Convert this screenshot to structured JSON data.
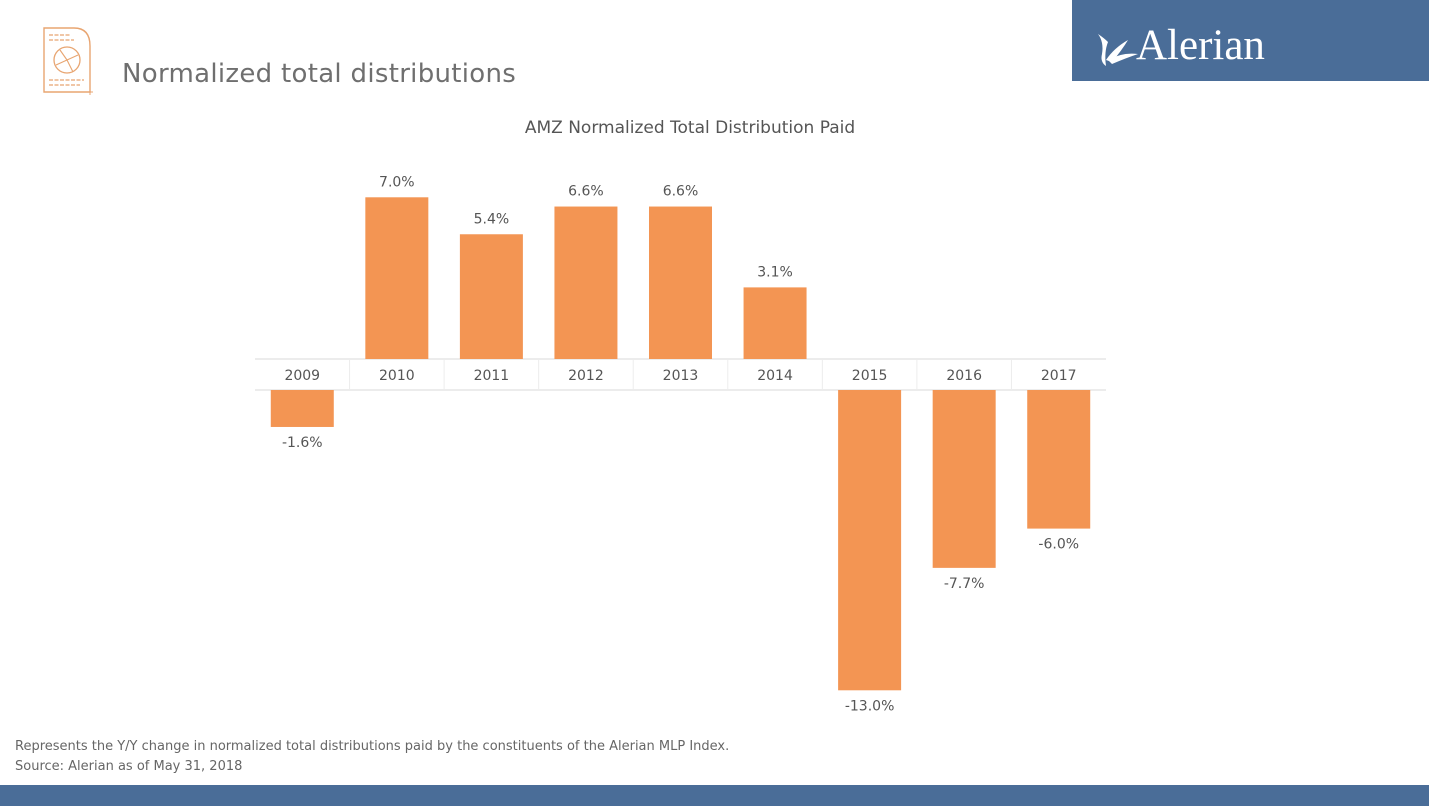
{
  "header": {
    "title": "Normalized total distributions",
    "icon": "document-pie-chart-icon",
    "logo": {
      "text": "Alerian",
      "mark": "leaf-logo-icon"
    }
  },
  "colors": {
    "bar": "#f39553",
    "brand_blue": "#4a6d98",
    "icon_orange": "#e8a571",
    "axis_line": "#d9d9d9",
    "text_gray": "#555555"
  },
  "chart_data": {
    "type": "bar",
    "title": "AMZ Normalized Total Distribution Paid",
    "xlabel": "",
    "ylabel": "",
    "categories": [
      "2009",
      "2010",
      "2011",
      "2012",
      "2013",
      "2014",
      "2015",
      "2016",
      "2017"
    ],
    "values": [
      -1.6,
      7.0,
      5.4,
      6.6,
      6.6,
      3.1,
      -13.0,
      -7.7,
      -6.0
    ],
    "data_labels": [
      "-1.6%",
      "7.0%",
      "5.4%",
      "6.6%",
      "6.6%",
      "3.1%",
      "-13.0%",
      "-7.7%",
      "-6.0%"
    ],
    "unit": "%",
    "ylim": [
      -13.0,
      7.0
    ],
    "grid": false,
    "legend": "none",
    "category_axis_position": "between positive and negative bars at zero"
  },
  "footnotes": [
    "Represents the Y/Y change in normalized total distributions paid by the constituents of the Alerian MLP Index.",
    "Source: Alerian as of May 31, 2018"
  ]
}
